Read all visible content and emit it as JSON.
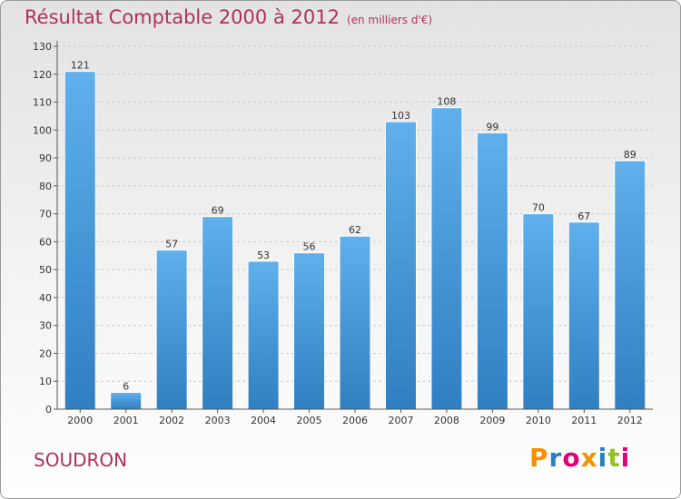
{
  "header": {
    "title": "Résultat Comptable 2000 à 2012",
    "subtitle": "(en milliers d'€)"
  },
  "commune": "SOUDRON",
  "logo": {
    "letters": [
      "P",
      "r",
      "o",
      "x",
      "i",
      "t",
      "i"
    ],
    "colors": [
      "#f39200",
      "#2a7fc4",
      "#e2007a",
      "#f39200",
      "#2a7fc4",
      "#95c11f",
      "#e2007a"
    ]
  },
  "chart_data": {
    "type": "bar",
    "title": "Résultat Comptable 2000 à 2012",
    "subtitle": "(en milliers d'€)",
    "categories": [
      "2000",
      "2001",
      "2002",
      "2003",
      "2004",
      "2005",
      "2006",
      "2007",
      "2008",
      "2009",
      "2010",
      "2011",
      "2012"
    ],
    "values": [
      121,
      6,
      57,
      69,
      53,
      56,
      62,
      103,
      108,
      99,
      70,
      67,
      89
    ],
    "ylim": [
      0,
      130
    ],
    "yticks": [
      0,
      10,
      20,
      30,
      40,
      50,
      60,
      70,
      80,
      90,
      100,
      110,
      120,
      130
    ],
    "grid": true,
    "bar_color": "#4a9de0",
    "legend": "none"
  }
}
